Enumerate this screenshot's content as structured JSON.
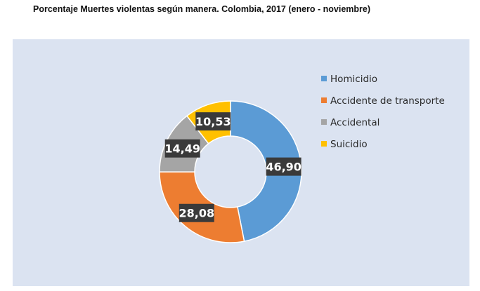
{
  "title": "Porcentaje  Muertes violentas según manera. Colombia, 2017 (enero - noviembre)",
  "chart_data": {
    "type": "pie",
    "donut": true,
    "legend_position": "right",
    "categories": [
      "Homicidio",
      "Accidente de transporte",
      "Accidental",
      "Suicidio"
    ],
    "values": [
      46.9,
      28.08,
      14.49,
      10.53
    ],
    "value_labels": [
      "46,90",
      "28,08",
      "14,49",
      "10,53"
    ],
    "colors": [
      "#5b9bd5",
      "#ed7d31",
      "#a5a5a5",
      "#ffc000"
    ]
  }
}
